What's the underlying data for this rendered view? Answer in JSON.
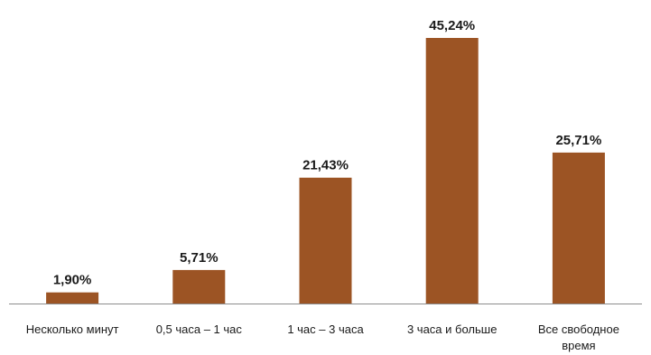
{
  "chart_data": {
    "type": "bar",
    "categories": [
      [
        "Несколько минут"
      ],
      [
        "0,5 часа – 1 час"
      ],
      [
        "1 час – 3 часа"
      ],
      [
        "3 часа и больше"
      ],
      [
        "Все свободное",
        "время"
      ]
    ],
    "values": [
      1.9,
      5.71,
      21.43,
      45.24,
      25.71
    ],
    "data_labels": [
      "1,90%",
      "5,71%",
      "21,43%",
      "45,24%",
      "25,71%"
    ],
    "title": "",
    "xlabel": "",
    "ylabel": "",
    "ylim": [
      0,
      45.24
    ],
    "grid": false,
    "legend": "none",
    "colors": {
      "bar": "#9C5424",
      "axis": "#8c8c8c",
      "text": "#1a1a1a"
    }
  }
}
